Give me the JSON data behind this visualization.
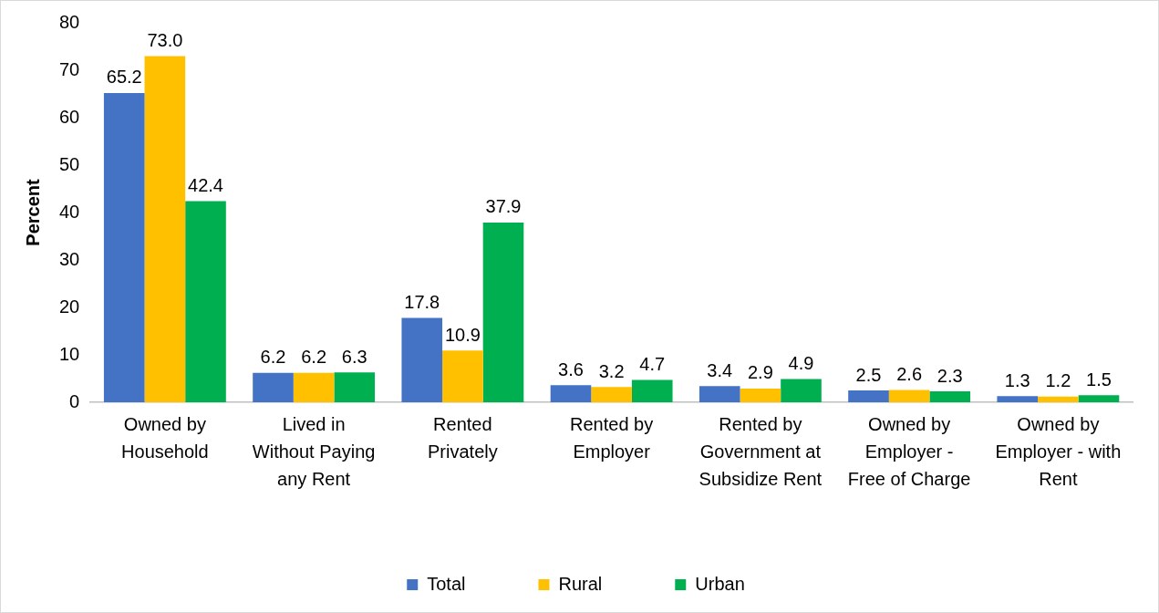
{
  "chart_data": {
    "type": "bar",
    "ylabel": "Percent",
    "categories": [
      "Owned by Household",
      "Lived in Without Paying any Rent",
      "Rented Privately",
      "Rented by Employer",
      "Rented by Government at Subsidize Rent",
      "Owned by Employer - Free of Charge",
      "Owned by Employer - with Rent"
    ],
    "series": [
      {
        "name": "Total",
        "color": "#4472c4",
        "values": [
          65.2,
          6.2,
          17.8,
          3.6,
          3.4,
          2.5,
          1.3
        ],
        "value_labels": [
          "65.2",
          "6.2",
          "17.8",
          "3.6",
          "3.4",
          "2.5",
          "1.3"
        ]
      },
      {
        "name": "Rural",
        "color": "#ffc000",
        "values": [
          73.0,
          6.2,
          10.9,
          3.2,
          2.9,
          2.6,
          1.2
        ],
        "value_labels": [
          "73.0",
          "6.2",
          "10.9",
          "3.2",
          "2.9",
          "2.6",
          "1.2"
        ]
      },
      {
        "name": "Urban",
        "color": "#00b050",
        "values": [
          42.4,
          6.3,
          37.9,
          4.7,
          4.9,
          2.3,
          1.5
        ],
        "value_labels": [
          "42.4",
          "6.3",
          "37.9",
          "4.7",
          "4.9",
          "2.3",
          "1.5"
        ]
      }
    ],
    "ylim": [
      0,
      80
    ],
    "yticks": [
      0,
      10,
      20,
      30,
      40,
      50,
      60,
      70,
      80
    ],
    "legend": "bottom"
  }
}
